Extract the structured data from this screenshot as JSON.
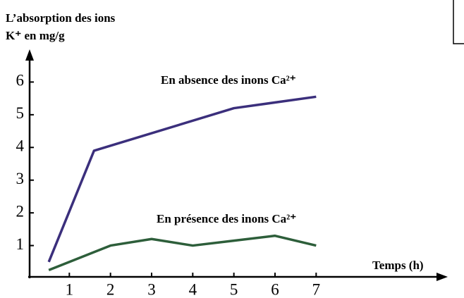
{
  "chart_data": {
    "type": "line",
    "y_label": [
      "L’absorption des ions",
      "K⁺  en mg/g"
    ],
    "x_label": "Temps (h)",
    "series": [
      {
        "name": "En absence des inons Ca²⁺",
        "color": "#3b2f7c",
        "x": [
          0.5,
          1.6,
          5,
          7
        ],
        "values": [
          0.5,
          3.9,
          5.2,
          5.55
        ]
      },
      {
        "name": "En présence des inons Ca²⁺",
        "color": "#2d5e3a",
        "x": [
          0.5,
          2,
          3,
          4,
          5,
          6,
          7
        ],
        "values": [
          0.25,
          1,
          1.2,
          1,
          1.15,
          1.3,
          1
        ]
      }
    ],
    "xlim": [
      0,
      10.2
    ],
    "ylim": [
      0,
      7
    ],
    "xticks": [
      1,
      2,
      3,
      4,
      5,
      6,
      7
    ],
    "yticks": [
      1,
      2,
      3,
      4,
      5,
      6
    ]
  }
}
